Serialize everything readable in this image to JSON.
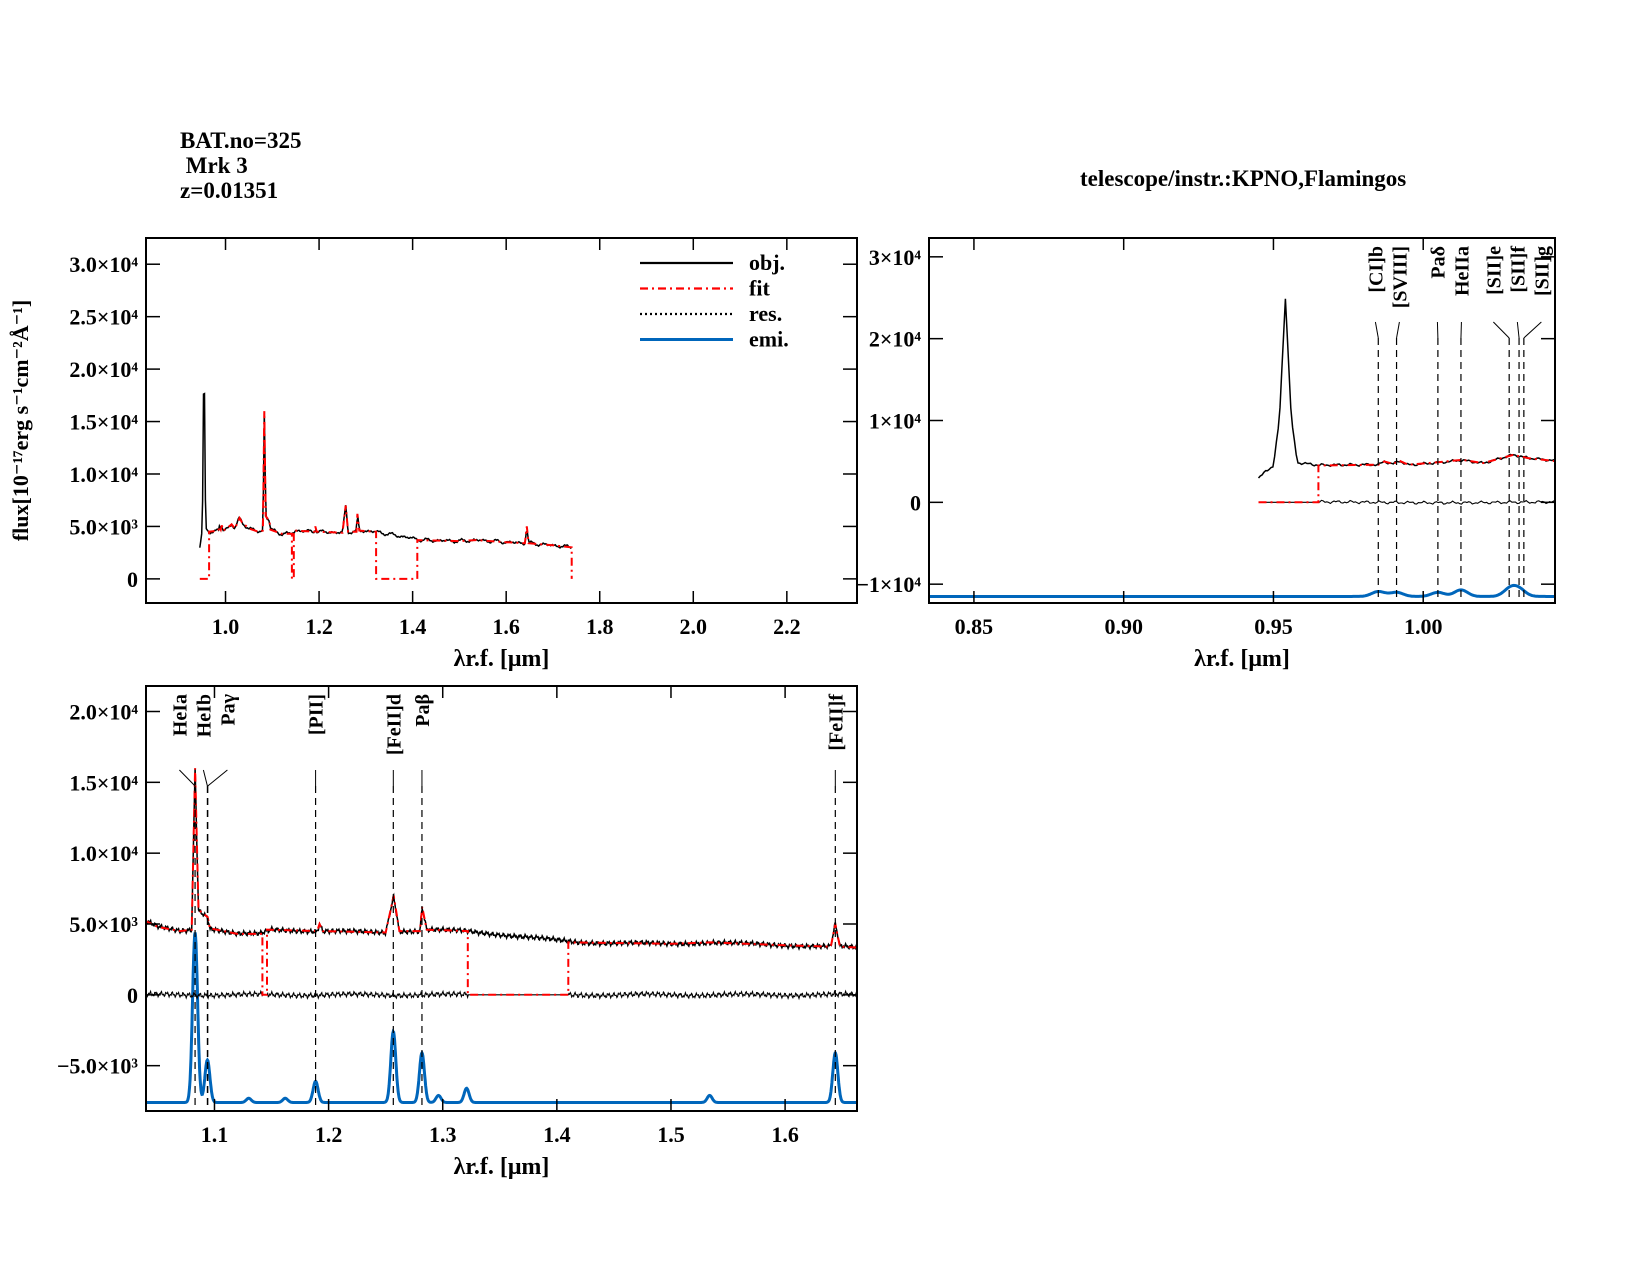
{
  "header": {
    "bat_no": "BAT.no=325",
    "name": " Mrk 3",
    "redshift": "z=0.01351",
    "telescope": "telescope/instr.:KPNO,Flamingos"
  },
  "colors": {
    "obj": "#000000",
    "fit": "#ff0000",
    "res": "#000000",
    "emi": "#0066bb"
  },
  "chart_data": [
    {
      "type": "line",
      "panel": "full-spectrum",
      "xlabel": "λr.f. [μm]",
      "ylabel": "flux[10⁻¹⁷erg s⁻¹cm⁻²Å⁻¹]",
      "xlim": [
        0.83,
        2.35
      ],
      "ylim": [
        -2300,
        32500
      ],
      "xticks": [
        {
          "v": 1.0,
          "l": "1.0"
        },
        {
          "v": 1.2,
          "l": "1.2"
        },
        {
          "v": 1.4,
          "l": "1.4"
        },
        {
          "v": 1.6,
          "l": "1.6"
        },
        {
          "v": 1.8,
          "l": "1.8"
        },
        {
          "v": 2.0,
          "l": "2.0"
        },
        {
          "v": 2.2,
          "l": "2.2"
        }
      ],
      "yticks": [
        {
          "v": 0,
          "l": "0"
        },
        {
          "v": 5000,
          "l": "5.0×10³"
        },
        {
          "v": 10000,
          "l": "1.0×10⁴"
        },
        {
          "v": 15000,
          "l": "1.5×10⁴"
        },
        {
          "v": 20000,
          "l": "2.0×10⁴"
        },
        {
          "v": 25000,
          "l": "2.5×10⁴"
        },
        {
          "v": 30000,
          "l": "3.0×10⁴"
        }
      ],
      "series_shown": [
        "obj",
        "fit"
      ],
      "legend": {
        "placement": "top-right",
        "entries": [
          {
            "key": "obj",
            "label": "obj.",
            "style": "solid"
          },
          {
            "key": "fit",
            "label": "fit",
            "style": "dash-dot"
          },
          {
            "key": "res",
            "label": "res.",
            "style": "dotted"
          },
          {
            "key": "emi",
            "label": "emi.",
            "style": "solid"
          }
        ]
      },
      "lines": []
    },
    {
      "type": "line",
      "panel": "zoom-short",
      "xlabel": "λr.f. [μm]",
      "ylabel": "",
      "xlim": [
        0.835,
        1.044
      ],
      "ylim": [
        -12300,
        32300
      ],
      "xticks": [
        {
          "v": 0.85,
          "l": "0.85"
        },
        {
          "v": 0.9,
          "l": "0.90"
        },
        {
          "v": 0.95,
          "l": "0.95"
        },
        {
          "v": 1.0,
          "l": "1.00"
        }
      ],
      "yticks": [
        {
          "v": -10000,
          "l": "−1×10⁴"
        },
        {
          "v": 0,
          "l": "0"
        },
        {
          "v": 10000,
          "l": "1×10⁴"
        },
        {
          "v": 20000,
          "l": "2×10⁴"
        },
        {
          "v": 30000,
          "l": "3×10⁴"
        }
      ],
      "series_shown": [
        "obj",
        "fit",
        "res",
        "emi"
      ],
      "emi_baseline": -11500,
      "lines": [
        {
          "x": 0.985,
          "label": "[CI]b"
        },
        {
          "x": 0.9911,
          "label": "[SVIII]"
        },
        {
          "x": 1.0049,
          "label": "Paδ"
        },
        {
          "x": 1.0126,
          "label": "HeIIa"
        },
        {
          "x": 1.0287,
          "label": "[SII]e"
        },
        {
          "x": 1.032,
          "label": "[SII]f"
        },
        {
          "x": 1.0336,
          "label": "[SII]g"
        }
      ]
    },
    {
      "type": "line",
      "panel": "zoom-long",
      "xlabel": "λr.f. [μm]",
      "ylabel": "",
      "xlim": [
        1.04,
        1.663
      ],
      "ylim": [
        -8200,
        21800
      ],
      "xticks": [
        {
          "v": 1.1,
          "l": "1.1"
        },
        {
          "v": 1.2,
          "l": "1.2"
        },
        {
          "v": 1.3,
          "l": "1.3"
        },
        {
          "v": 1.4,
          "l": "1.4"
        },
        {
          "v": 1.5,
          "l": "1.5"
        },
        {
          "v": 1.6,
          "l": "1.6"
        }
      ],
      "yticks": [
        {
          "v": -5000,
          "l": "−5.0×10³"
        },
        {
          "v": 0,
          "l": "0"
        },
        {
          "v": 5000,
          "l": "5.0×10³"
        },
        {
          "v": 10000,
          "l": "1.0×10⁴"
        },
        {
          "v": 15000,
          "l": "1.5×10⁴"
        },
        {
          "v": 20000,
          "l": "2.0×10⁴"
        }
      ],
      "series_shown": [
        "obj",
        "fit",
        "res",
        "emi"
      ],
      "emi_baseline": -7600,
      "lines": [
        {
          "x": 1.083,
          "label": "HeIa"
        },
        {
          "x": 1.0938,
          "label": "HeIb"
        },
        {
          "x": 1.0941,
          "label": "Paγ"
        },
        {
          "x": 1.1886,
          "label": "[PII]"
        },
        {
          "x": 1.2567,
          "label": "[FeII]d"
        },
        {
          "x": 1.2818,
          "label": "Paβ"
        },
        {
          "x": 1.644,
          "label": "[FeII]f"
        }
      ]
    }
  ],
  "spectrum": {
    "obj": [
      [
        0.945,
        3000
      ],
      [
        0.95,
        4500
      ],
      [
        0.952,
        10000
      ],
      [
        0.954,
        25000
      ],
      [
        0.956,
        10000
      ],
      [
        0.958,
        4800
      ],
      [
        0.965,
        4500
      ],
      [
        0.985,
        4600
      ],
      [
        0.987,
        5000
      ],
      [
        0.99,
        4700
      ],
      [
        0.992,
        5100
      ],
      [
        0.995,
        4600
      ],
      [
        1.005,
        4900
      ],
      [
        1.013,
        5200
      ],
      [
        1.02,
        4800
      ],
      [
        1.03,
        5800
      ],
      [
        1.035,
        5400
      ],
      [
        1.05,
        4800
      ],
      [
        1.07,
        4500
      ],
      [
        1.08,
        4600
      ],
      [
        1.083,
        16000
      ],
      [
        1.086,
        6000
      ],
      [
        1.094,
        5500
      ],
      [
        1.096,
        4700
      ],
      [
        1.12,
        4300
      ],
      [
        1.14,
        4300
      ],
      [
        1.15,
        4600
      ],
      [
        1.19,
        4500
      ],
      [
        1.192,
        5000
      ],
      [
        1.195,
        4500
      ],
      [
        1.25,
        4400
      ],
      [
        1.257,
        7000
      ],
      [
        1.262,
        4500
      ],
      [
        1.28,
        4500
      ],
      [
        1.282,
        6200
      ],
      [
        1.286,
        4600
      ],
      [
        1.32,
        4500
      ],
      [
        1.42,
        3700
      ],
      [
        1.5,
        3600
      ],
      [
        1.535,
        3700
      ],
      [
        1.6,
        3500
      ],
      [
        1.64,
        3400
      ],
      [
        1.644,
        5000
      ],
      [
        1.648,
        3400
      ],
      [
        1.7,
        3200
      ],
      [
        1.74,
        3000
      ]
    ],
    "fit": [
      [
        0.945,
        0
      ],
      [
        0.965,
        0
      ],
      [
        0.965,
        4500
      ],
      [
        0.985,
        4600
      ],
      [
        0.987,
        5000
      ],
      [
        0.99,
        4700
      ],
      [
        0.992,
        5100
      ],
      [
        0.995,
        4600
      ],
      [
        1.005,
        4900
      ],
      [
        1.013,
        5200
      ],
      [
        1.02,
        4800
      ],
      [
        1.03,
        5800
      ],
      [
        1.035,
        5400
      ],
      [
        1.05,
        4800
      ],
      [
        1.07,
        4500
      ],
      [
        1.08,
        4600
      ],
      [
        1.083,
        16000
      ],
      [
        1.086,
        6000
      ],
      [
        1.094,
        5500
      ],
      [
        1.096,
        4700
      ],
      [
        1.12,
        4300
      ],
      [
        1.142,
        4300
      ],
      [
        1.142,
        0
      ],
      [
        1.146,
        0
      ],
      [
        1.146,
        4600
      ],
      [
        1.19,
        4500
      ],
      [
        1.192,
        5000
      ],
      [
        1.195,
        4500
      ],
      [
        1.25,
        4400
      ],
      [
        1.257,
        7000
      ],
      [
        1.262,
        4500
      ],
      [
        1.28,
        4500
      ],
      [
        1.282,
        6200
      ],
      [
        1.286,
        4600
      ],
      [
        1.322,
        4500
      ],
      [
        1.322,
        0
      ],
      [
        1.41,
        0
      ],
      [
        1.41,
        3700
      ],
      [
        1.5,
        3600
      ],
      [
        1.535,
        3700
      ],
      [
        1.6,
        3500
      ],
      [
        1.64,
        3400
      ],
      [
        1.644,
        5000
      ],
      [
        1.648,
        3400
      ],
      [
        1.7,
        3200
      ],
      [
        1.74,
        3000
      ],
      [
        1.74,
        0
      ]
    ],
    "emi": [
      [
        0.985,
        600
      ],
      [
        0.9911,
        500
      ],
      [
        1.0049,
        500
      ],
      [
        1.0126,
        800
      ],
      [
        1.029,
        900
      ],
      [
        1.032,
        800
      ],
      [
        1.083,
        12000
      ],
      [
        1.0938,
        3000
      ],
      [
        1.13,
        300
      ],
      [
        1.162,
        300
      ],
      [
        1.1886,
        1500
      ],
      [
        1.2567,
        5000
      ],
      [
        1.2818,
        3500
      ],
      [
        1.2963,
        500
      ],
      [
        1.3209,
        1000
      ],
      [
        1.5339,
        500
      ],
      [
        1.644,
        3500
      ]
    ]
  }
}
